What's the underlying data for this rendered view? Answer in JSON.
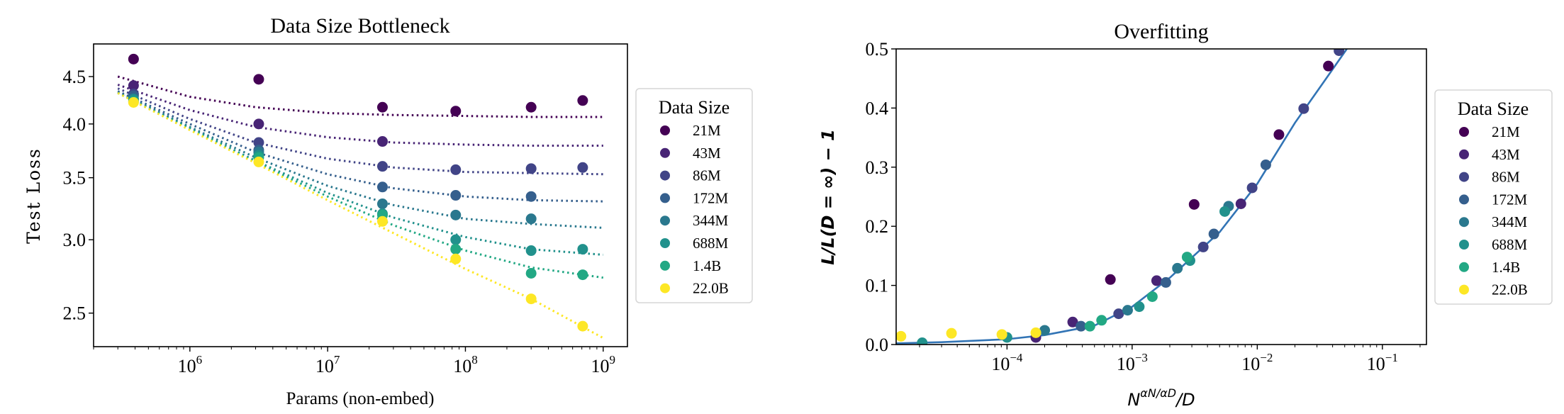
{
  "chart_data": [
    {
      "type": "scatter",
      "title": "Data Size Bottleneck",
      "xlabel": "Params (non-embed)",
      "ylabel": "Test Loss",
      "xscale": "log",
      "yscale": "log",
      "xlim": [
        200000.0,
        1500000000.0
      ],
      "ylim": [
        2.3,
        4.88
      ],
      "xticks": [
        1000000.0,
        10000000.0,
        100000000.0,
        1000000000.0
      ],
      "xtick_labels": [
        {
          "base": "10",
          "exp": "6"
        },
        {
          "base": "10",
          "exp": "7"
        },
        {
          "base": "10",
          "exp": "8"
        },
        {
          "base": "10",
          "exp": "9"
        }
      ],
      "yticks": [
        2.5,
        3.0,
        3.5,
        4.0,
        4.5
      ],
      "ytick_labels": [
        "2.5",
        "3.0",
        "3.5",
        "4.0",
        "4.5"
      ],
      "grid": false,
      "legend": {
        "title": "Data Size",
        "placement": "outside-right"
      },
      "x": [
        390000.0,
        3160000.0,
        25000000.0,
        85000000.0,
        300000000.0,
        710000000.0
      ],
      "fit_x": [
        300000.0,
        1000000.0,
        3000000.0,
        10000000.0,
        30000000.0,
        100000000.0,
        300000000.0,
        1000000000.0
      ],
      "fit_style": "dotted",
      "series": [
        {
          "name": "21M",
          "color": "#440154",
          "values": [
            4.7,
            4.47,
            4.17,
            4.13,
            4.17,
            4.24
          ],
          "fit": [
            4.5,
            4.28,
            4.17,
            4.11,
            4.09,
            4.08,
            4.07,
            4.07
          ]
        },
        {
          "name": "43M",
          "color": "#482475",
          "values": [
            4.4,
            4.0,
            3.83,
            null,
            null,
            null
          ],
          "fit": [
            4.41,
            4.14,
            3.97,
            3.87,
            3.82,
            3.8,
            3.79,
            3.79
          ]
        },
        {
          "name": "86M",
          "color": "#414487",
          "values": [
            4.31,
            3.82,
            3.6,
            3.57,
            3.58,
            3.59
          ],
          "fit": [
            4.37,
            4.05,
            3.82,
            3.67,
            3.59,
            3.55,
            3.54,
            3.53
          ]
        },
        {
          "name": "172M",
          "color": "#355f8d",
          "values": [
            4.29,
            3.75,
            3.42,
            3.35,
            3.34,
            null
          ],
          "fit": [
            4.34,
            4.0,
            3.73,
            3.53,
            3.41,
            3.34,
            3.31,
            3.3
          ]
        },
        {
          "name": "344M",
          "color": "#2a788e",
          "values": [
            4.26,
            3.73,
            3.28,
            3.19,
            3.16,
            null
          ],
          "fit": [
            4.33,
            3.97,
            3.68,
            3.43,
            3.27,
            3.16,
            3.12,
            3.09
          ]
        },
        {
          "name": "688M",
          "color": "#21918c",
          "values": [
            4.25,
            3.7,
            3.2,
            3.0,
            2.92,
            2.93
          ],
          "fit": [
            4.32,
            3.96,
            3.65,
            3.37,
            3.17,
            3.02,
            2.93,
            2.89
          ]
        },
        {
          "name": "1.4B",
          "color": "#22a884",
          "values": [
            4.23,
            3.68,
            3.19,
            2.93,
            2.76,
            2.75
          ],
          "fit": [
            4.32,
            3.95,
            3.64,
            3.34,
            3.11,
            2.92,
            2.8,
            2.73
          ]
        },
        {
          "name": "22.0B",
          "color": "#fde725",
          "values": [
            4.22,
            3.64,
            3.14,
            2.86,
            2.59,
            2.42
          ],
          "fit": [
            4.32,
            3.94,
            3.63,
            3.31,
            3.05,
            2.79,
            2.59,
            2.35
          ]
        }
      ]
    },
    {
      "type": "scatter",
      "title": "Overfitting",
      "xlabel": {
        "base": "N",
        "exp": "αN/αD",
        "suffix": "/D"
      },
      "ylabel": "L/L(D = ∞) − 1",
      "xscale": "log",
      "yscale": "linear",
      "xlim": [
        1.3e-05,
        0.225
      ],
      "ylim": [
        0.0,
        0.5
      ],
      "xticks": [
        0.0001,
        0.001,
        0.01,
        0.1
      ],
      "xtick_labels": [
        {
          "base": "10",
          "exp": "−4"
        },
        {
          "base": "10",
          "exp": "−3"
        },
        {
          "base": "10",
          "exp": "−2"
        },
        {
          "base": "10",
          "exp": "−1"
        }
      ],
      "yticks": [
        0.0,
        0.1,
        0.2,
        0.3,
        0.4,
        0.5
      ],
      "ytick_labels": [
        "0.0",
        "0.1",
        "0.2",
        "0.3",
        "0.4",
        "0.5"
      ],
      "grid": false,
      "legend": {
        "title": "Data Size",
        "placement": "outside-right"
      },
      "curve": {
        "color": "#3274b5",
        "x": [
          1.3e-05,
          3e-05,
          0.0001,
          0.0002,
          0.0005,
          0.001,
          0.002,
          0.005,
          0.01,
          0.02,
          0.035,
          0.052
        ],
        "y": [
          0.002,
          0.004,
          0.009,
          0.016,
          0.032,
          0.064,
          0.113,
          0.19,
          0.272,
          0.375,
          0.448,
          0.5
        ]
      },
      "series": [
        {
          "name": "21M",
          "color": "#440154",
          "points": [
            [
              0.00067,
              0.11
            ],
            [
              0.00313,
              0.237
            ],
            [
              0.0149,
              0.355
            ],
            [
              0.037,
              0.471
            ]
          ]
        },
        {
          "name": "43M",
          "color": "#482475",
          "points": [
            [
              0.00017,
              0.012
            ],
            [
              0.000335,
              0.038
            ],
            [
              0.00157,
              0.108
            ],
            [
              0.0074,
              0.238
            ]
          ]
        },
        {
          "name": "86M",
          "color": "#414487",
          "points": [
            [
              0.00078,
              0.052
            ],
            [
              0.0037,
              0.165
            ],
            [
              0.0091,
              0.265
            ],
            [
              0.0235,
              0.399
            ],
            [
              0.045,
              0.497
            ]
          ]
        },
        {
          "name": "172M",
          "color": "#355f8d",
          "points": [
            [
              0.00039,
              0.031
            ],
            [
              0.00186,
              0.105
            ],
            [
              0.0045,
              0.187
            ],
            [
              0.0117,
              0.304
            ]
          ]
        },
        {
          "name": "344M",
          "color": "#2a788e",
          "points": [
            [
              0.0002,
              0.024
            ],
            [
              0.00092,
              0.058
            ],
            [
              0.0023,
              0.129
            ],
            [
              0.0059,
              0.234
            ]
          ]
        },
        {
          "name": "688M",
          "color": "#21918c",
          "points": [
            [
              2.1e-05,
              0.003
            ],
            [
              0.0001,
              0.012
            ],
            [
              0.00114,
              0.064
            ],
            [
              0.0029,
              0.142
            ],
            [
              0.0055,
              0.225
            ]
          ]
        },
        {
          "name": "1.4B",
          "color": "#22a884",
          "points": [
            [
              0.00046,
              0.031
            ],
            [
              0.00057,
              0.041
            ],
            [
              0.00145,
              0.081
            ],
            [
              0.00275,
              0.148
            ]
          ]
        },
        {
          "name": "22.0B",
          "color": "#fde725",
          "points": [
            [
              1.42e-05,
              0.014
            ],
            [
              3.6e-05,
              0.019
            ],
            [
              9.1e-05,
              0.017
            ],
            [
              0.00017,
              0.02
            ]
          ]
        }
      ]
    }
  ]
}
